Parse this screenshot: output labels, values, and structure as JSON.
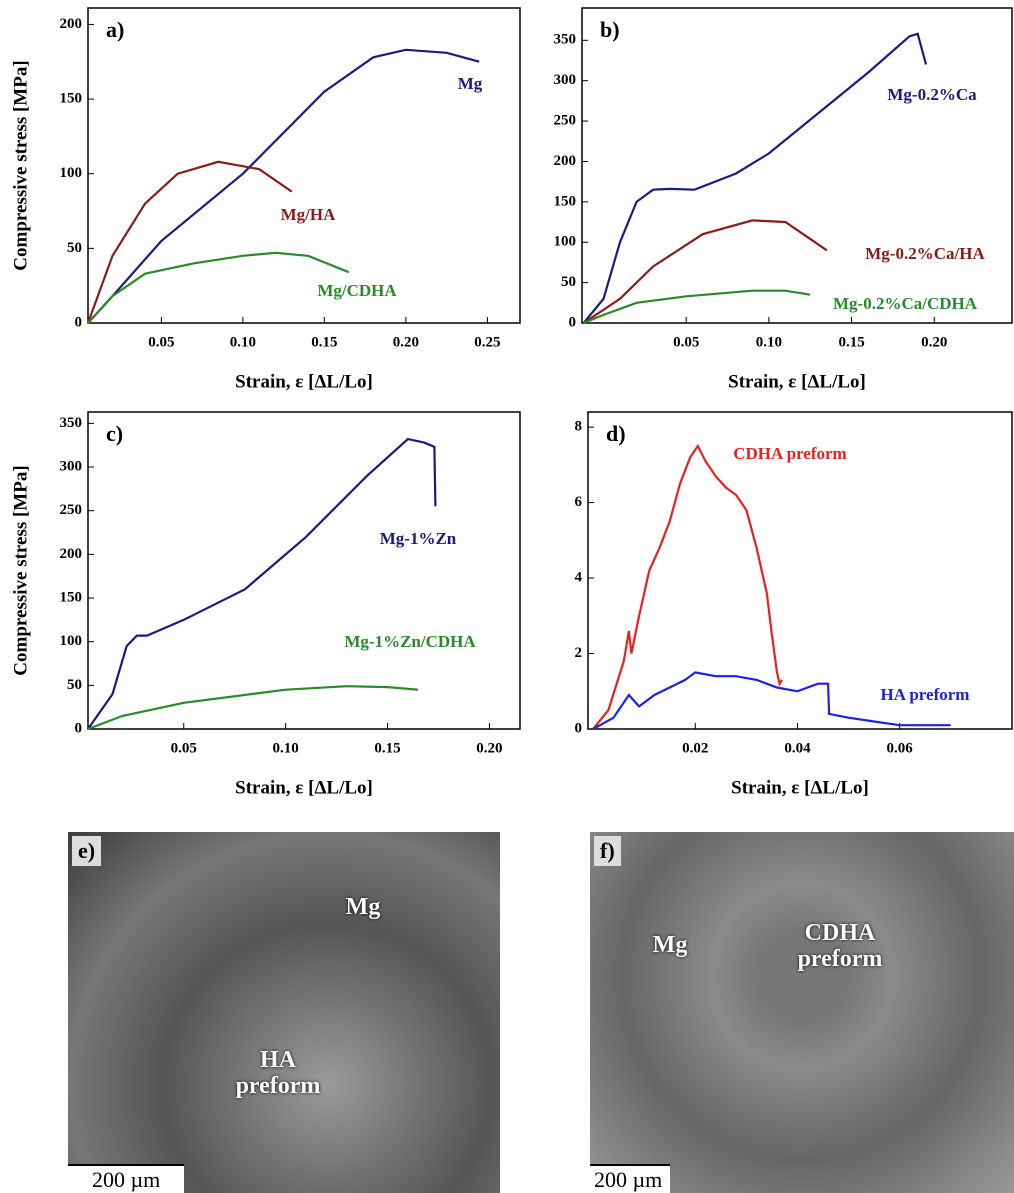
{
  "chart_data": [
    {
      "type": "line",
      "panel": "a)",
      "xlabel": "Strain, ε [ΔL/Lo]",
      "ylabel": "Compressive stress [MPa]",
      "xlim": [
        0.005,
        0.27
      ],
      "ylim": [
        0,
        211
      ],
      "xticks": [
        0.05,
        {
          "value": 0.1,
          "label": "0.10"
        },
        0.15,
        {
          "value": 0.2,
          "label": "0.20"
        },
        0.25
      ],
      "yticks": [
        0,
        50,
        100,
        150,
        200
      ],
      "series": [
        {
          "name": "Mg",
          "color": "#1a1a80",
          "x": [
            0.005,
            0.02,
            0.05,
            0.1,
            0.15,
            0.18,
            0.2,
            0.225,
            0.245
          ],
          "values": [
            0,
            18,
            55,
            100,
            155,
            178,
            183,
            181,
            175
          ]
        },
        {
          "name": "Mg/HA",
          "color": "#8b1a1a",
          "x": [
            0.005,
            0.02,
            0.04,
            0.06,
            0.085,
            0.11,
            0.13
          ],
          "values": [
            0,
            45,
            80,
            100,
            108,
            103,
            88
          ]
        },
        {
          "name": "Mg/CDHA",
          "color": "#2a8a2a",
          "x": [
            0.005,
            0.02,
            0.04,
            0.07,
            0.1,
            0.12,
            0.14,
            0.165
          ],
          "values": [
            0,
            18,
            33,
            40,
            45,
            47,
            45,
            34
          ]
        }
      ]
    },
    {
      "type": "line",
      "panel": "b)",
      "xlabel": "Strain, ε [ΔL/Lo]",
      "xlim": [
        -0.013,
        0.247
      ],
      "ylim": [
        0,
        390
      ],
      "xticks": [
        0.05,
        {
          "value": 0.1,
          "label": "0.10"
        },
        0.15,
        {
          "value": 0.2,
          "label": "0.20"
        }
      ],
      "yticks": [
        0,
        50,
        100,
        150,
        200,
        250,
        300,
        350
      ],
      "series": [
        {
          "name": "Mg-0.2%Ca",
          "color": "#1a1a80",
          "x": [
            -0.012,
            0.0,
            0.01,
            0.02,
            0.03,
            0.04,
            0.055,
            0.08,
            0.1,
            0.13,
            0.16,
            0.185,
            0.19,
            0.195
          ],
          "values": [
            0,
            30,
            100,
            150,
            165,
            166,
            165,
            185,
            210,
            260,
            310,
            355,
            358,
            320
          ]
        },
        {
          "name": "Mg-0.2%Ca/HA",
          "color": "#8b1a1a",
          "x": [
            -0.012,
            0.01,
            0.03,
            0.06,
            0.09,
            0.11,
            0.135
          ],
          "values": [
            0,
            30,
            70,
            110,
            127,
            125,
            90
          ]
        },
        {
          "name": "Mg-0.2%Ca/CDHA",
          "color": "#2a8a2a",
          "x": [
            -0.012,
            0.0,
            0.02,
            0.05,
            0.09,
            0.11,
            0.125
          ],
          "values": [
            0,
            10,
            25,
            33,
            40,
            40,
            35
          ]
        }
      ]
    },
    {
      "type": "line",
      "panel": "c)",
      "xlabel": "Strain, ε [ΔL/Lo]",
      "ylabel": "Compressive stress [MPa]",
      "xlim": [
        0.003,
        0.215
      ],
      "ylim": [
        0,
        363
      ],
      "xticks": [
        0.05,
        {
          "value": 0.1,
          "label": "0.10"
        },
        0.15,
        {
          "value": 0.2,
          "label": "0.20"
        }
      ],
      "yticks": [
        0,
        50,
        100,
        150,
        200,
        250,
        300,
        350
      ],
      "series": [
        {
          "name": "Mg-1%Zn",
          "color": "#1a1a80",
          "x": [
            0.003,
            0.015,
            0.022,
            0.027,
            0.032,
            0.05,
            0.08,
            0.11,
            0.14,
            0.16,
            0.168,
            0.173,
            0.1735
          ],
          "values": [
            0,
            40,
            95,
            107,
            107,
            125,
            160,
            220,
            290,
            332,
            328,
            323,
            255
          ]
        },
        {
          "name": "Mg-1%Zn/CDHA",
          "color": "#2a8a2a",
          "x": [
            0.003,
            0.02,
            0.05,
            0.1,
            0.13,
            0.15,
            0.165
          ],
          "values": [
            0,
            15,
            30,
            45,
            49,
            48,
            45
          ]
        }
      ]
    },
    {
      "type": "line",
      "panel": "d)",
      "xlabel": "Strain, ε [ΔL/Lo]",
      "xlim": [
        -0.001,
        0.082
      ],
      "ylim": [
        0,
        8.4
      ],
      "xticks": [
        0.02,
        0.04,
        0.06
      ],
      "yticks": [
        0,
        2,
        4,
        6,
        8
      ],
      "series": [
        {
          "name": "CDHA preform",
          "color": "#e82020",
          "x": [
            0,
            0.003,
            0.006,
            0.007,
            0.0075,
            0.009,
            0.011,
            0.013,
            0.015,
            0.017,
            0.019,
            0.0205,
            0.022,
            0.024,
            0.026,
            0.028,
            0.03,
            0.032,
            0.034,
            0.035,
            0.036,
            0.0365,
            0.037
          ],
          "values": [
            0,
            0.5,
            1.8,
            2.6,
            2.0,
            3.0,
            4.2,
            4.8,
            5.5,
            6.5,
            7.2,
            7.5,
            7.1,
            6.7,
            6.4,
            6.2,
            5.8,
            4.8,
            3.6,
            2.5,
            1.5,
            1.2,
            1.3
          ]
        },
        {
          "name": "HA preform",
          "color": "#2020e0",
          "x": [
            0,
            0.004,
            0.007,
            0.009,
            0.012,
            0.015,
            0.018,
            0.02,
            0.024,
            0.028,
            0.032,
            0.036,
            0.04,
            0.044,
            0.046,
            0.0462,
            0.05,
            0.055,
            0.06,
            0.065,
            0.07
          ],
          "values": [
            0,
            0.3,
            0.9,
            0.6,
            0.9,
            1.1,
            1.3,
            1.5,
            1.4,
            1.4,
            1.3,
            1.1,
            1.0,
            1.2,
            1.2,
            0.4,
            0.3,
            0.2,
            0.1,
            0.1,
            0.1
          ]
        }
      ]
    }
  ],
  "images": [
    {
      "label": "e)",
      "annotations": [
        "Mg",
        "HA preform"
      ],
      "scale_bar": "200 µm"
    },
    {
      "label": "f)",
      "annotations": [
        "Mg",
        "CDHA preform"
      ],
      "scale_bar": "200 µm"
    }
  ]
}
